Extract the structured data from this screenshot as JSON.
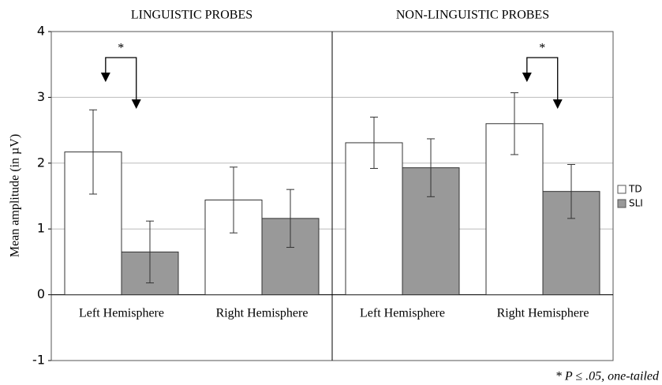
{
  "chart_data": {
    "type": "bar",
    "ylabel": "Mean amplitude (in µV)",
    "ylim": [
      -1,
      4
    ],
    "yticks": [
      -1,
      0,
      1,
      2,
      3,
      4
    ],
    "grid": true,
    "legend": "right",
    "series": [
      {
        "name": "TD",
        "color": "#ffffff"
      },
      {
        "name": "SLI",
        "color": "#999999"
      }
    ],
    "panels": [
      {
        "title": "LINGUISTIC PROBES",
        "categories": [
          "Left Hemisphere",
          "Right Hemisphere"
        ],
        "values": [
          [
            2.17,
            1.44
          ],
          [
            0.65,
            1.16
          ]
        ],
        "errors": [
          [
            0.64,
            0.5
          ],
          [
            0.47,
            0.44
          ]
        ],
        "annotation": "*"
      },
      {
        "title": "NON-LINGUISTIC PROBES",
        "categories": [
          "Left Hemisphere",
          "Right Hemisphere"
        ],
        "values": [
          [
            2.31,
            2.6
          ],
          [
            1.93,
            1.57
          ]
        ],
        "errors": [
          [
            0.39,
            0.47
          ],
          [
            0.44,
            0.41
          ]
        ],
        "annotation": "*"
      }
    ],
    "footnote": "* P ≤ .05, one-tailed"
  }
}
